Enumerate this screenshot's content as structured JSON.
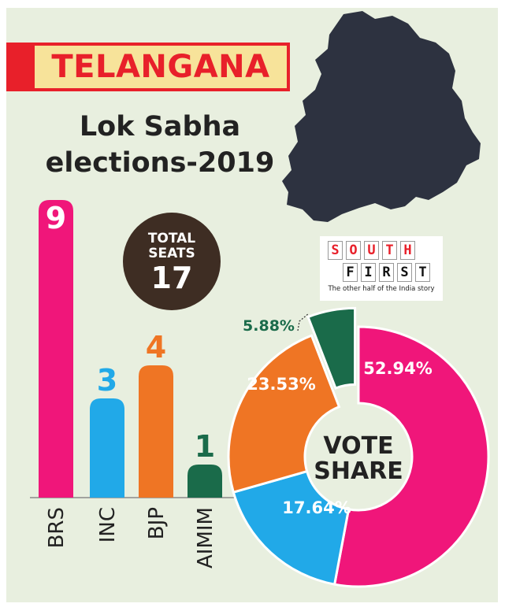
{
  "header": {
    "state": "TELANGANA",
    "subtitle_line1": "Lok Sabha",
    "subtitle_line2": "elections-2019"
  },
  "total_seats": {
    "line1": "TOTAL",
    "line2": "SEATS",
    "value": "17"
  },
  "logo": {
    "top_letters": [
      "S",
      "O",
      "U",
      "T",
      "H"
    ],
    "bottom_letters": [
      "F",
      "I",
      "R",
      "S",
      "T"
    ],
    "tagline": "The other half of the India story"
  },
  "colors": {
    "BRS": "#f0167a",
    "INC": "#21a9e8",
    "BJP": "#ef7524",
    "AIMIM": "#1a6b4a",
    "banner_red": "#e8202a",
    "banner_yellow": "#f7e39a",
    "map": "#2d3240",
    "background": "#e8efdf"
  },
  "chart_data": [
    {
      "type": "bar",
      "categories": [
        "BRS",
        "INC",
        "BJP",
        "AIMIM"
      ],
      "values": [
        9,
        3,
        4,
        1
      ],
      "value_labels": [
        "9",
        "3",
        "4",
        "1"
      ]
    },
    {
      "type": "pie",
      "center_label": [
        "VOTE",
        "SHARE"
      ],
      "categories": [
        "BRS",
        "INC",
        "BJP",
        "AIMIM"
      ],
      "values": [
        52.94,
        17.64,
        23.53,
        5.88
      ],
      "labels": [
        "52.94%",
        "17.64%",
        "23.53%",
        "5.88%"
      ],
      "exploded": "AIMIM"
    }
  ]
}
